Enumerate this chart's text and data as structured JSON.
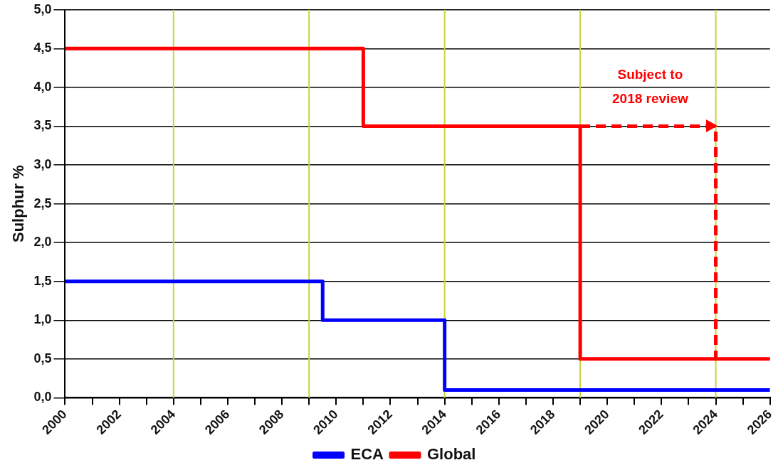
{
  "chart_data": {
    "type": "step",
    "ylabel": "Sulphur %",
    "xlim": [
      2000,
      2026
    ],
    "ylim": [
      0,
      5
    ],
    "xticks": [
      2000,
      {
        "value": 2001,
        "label": null
      },
      2002,
      {
        "value": 2003,
        "label": null
      },
      2004,
      {
        "value": 2005,
        "label": null
      },
      2006,
      {
        "value": 2007,
        "label": null
      },
      2008,
      {
        "value": 2009,
        "label": null
      },
      2010,
      {
        "value": 2011,
        "label": null
      },
      2012,
      {
        "value": 2013,
        "label": null
      },
      2014,
      {
        "value": 2015,
        "label": null
      },
      2016,
      {
        "value": 2017,
        "label": null
      },
      2018,
      {
        "value": 2019,
        "label": null
      },
      2020,
      {
        "value": 2021,
        "label": null
      },
      2022,
      {
        "value": 2023,
        "label": null
      },
      2024,
      {
        "value": 2025,
        "label": null
      },
      2026
    ],
    "yticks": [
      {
        "value": 0,
        "label": "0,0"
      },
      {
        "value": 0.5,
        "label": "0,5"
      },
      {
        "value": 1,
        "label": "1,0"
      },
      {
        "value": 1.5,
        "label": "1,5"
      },
      {
        "value": 2,
        "label": "2,0"
      },
      {
        "value": 2.5,
        "label": "2,5"
      },
      {
        "value": 3,
        "label": "3,0"
      },
      {
        "value": 3.5,
        "label": "3,5"
      },
      {
        "value": 4,
        "label": "4,0"
      },
      {
        "value": 4.5,
        "label": "4,5"
      },
      {
        "value": 5,
        "label": "5,0"
      }
    ],
    "grid": "y",
    "legend": "bottom",
    "series": [
      {
        "name": "ECA",
        "color": "#0000ff",
        "x": [
          2000,
          2009.5,
          2014,
          2026
        ],
        "values": [
          1.5,
          1.0,
          0.1,
          0.1
        ]
      },
      {
        "name": "Global",
        "color": "#ff0000",
        "x": [
          2000,
          2011,
          2019,
          2026
        ],
        "values": [
          4.5,
          3.5,
          0.5,
          0.5
        ]
      },
      {
        "type": "step",
        "color": "#ff0000",
        "line_style": "dashed",
        "x": [
          2019,
          2024
        ],
        "values": [
          3.5,
          0.5
        ]
      }
    ],
    "ref_lines": [
      {
        "axis": "x",
        "value": 2004,
        "color": "#c8d43c"
      },
      {
        "axis": "x",
        "value": 2009,
        "color": "#c8d43c"
      },
      {
        "axis": "x",
        "value": 2014,
        "color": "#c8d43c"
      },
      {
        "axis": "x",
        "value": 2019,
        "color": "#c8d43c"
      },
      {
        "axis": "x",
        "value": 2024,
        "color": "#c8d43c"
      }
    ],
    "annotations": [
      "Subject to 2018 review"
    ]
  }
}
